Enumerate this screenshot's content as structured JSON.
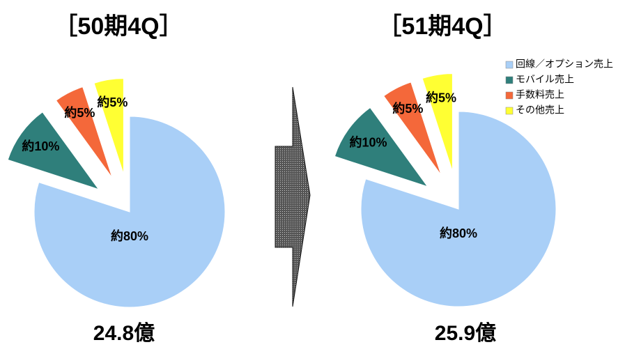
{
  "chart_data": [
    {
      "type": "pie",
      "title": "［50期4Q］",
      "caption": "24.8億",
      "values": [
        80,
        10,
        5,
        5
      ],
      "value_labels": [
        "約80%",
        "約10%",
        "約5%",
        "約5%"
      ],
      "colors": [
        "#a9cff7",
        "#2f7f7b",
        "#f4683a",
        "#ffff33"
      ]
    },
    {
      "type": "pie",
      "title": "［51期4Q］",
      "caption": "25.9億",
      "categories": [
        "回線／オプション売上",
        "モバイル売上",
        "手数料売上",
        "その他売上"
      ],
      "values": [
        80,
        10,
        5,
        5
      ],
      "value_labels": [
        "約80%",
        "約10%",
        "約5%",
        "約5%"
      ],
      "colors": [
        "#a9cff7",
        "#2f7f7b",
        "#f4683a",
        "#ffff33"
      ],
      "legend": "top-right"
    }
  ]
}
